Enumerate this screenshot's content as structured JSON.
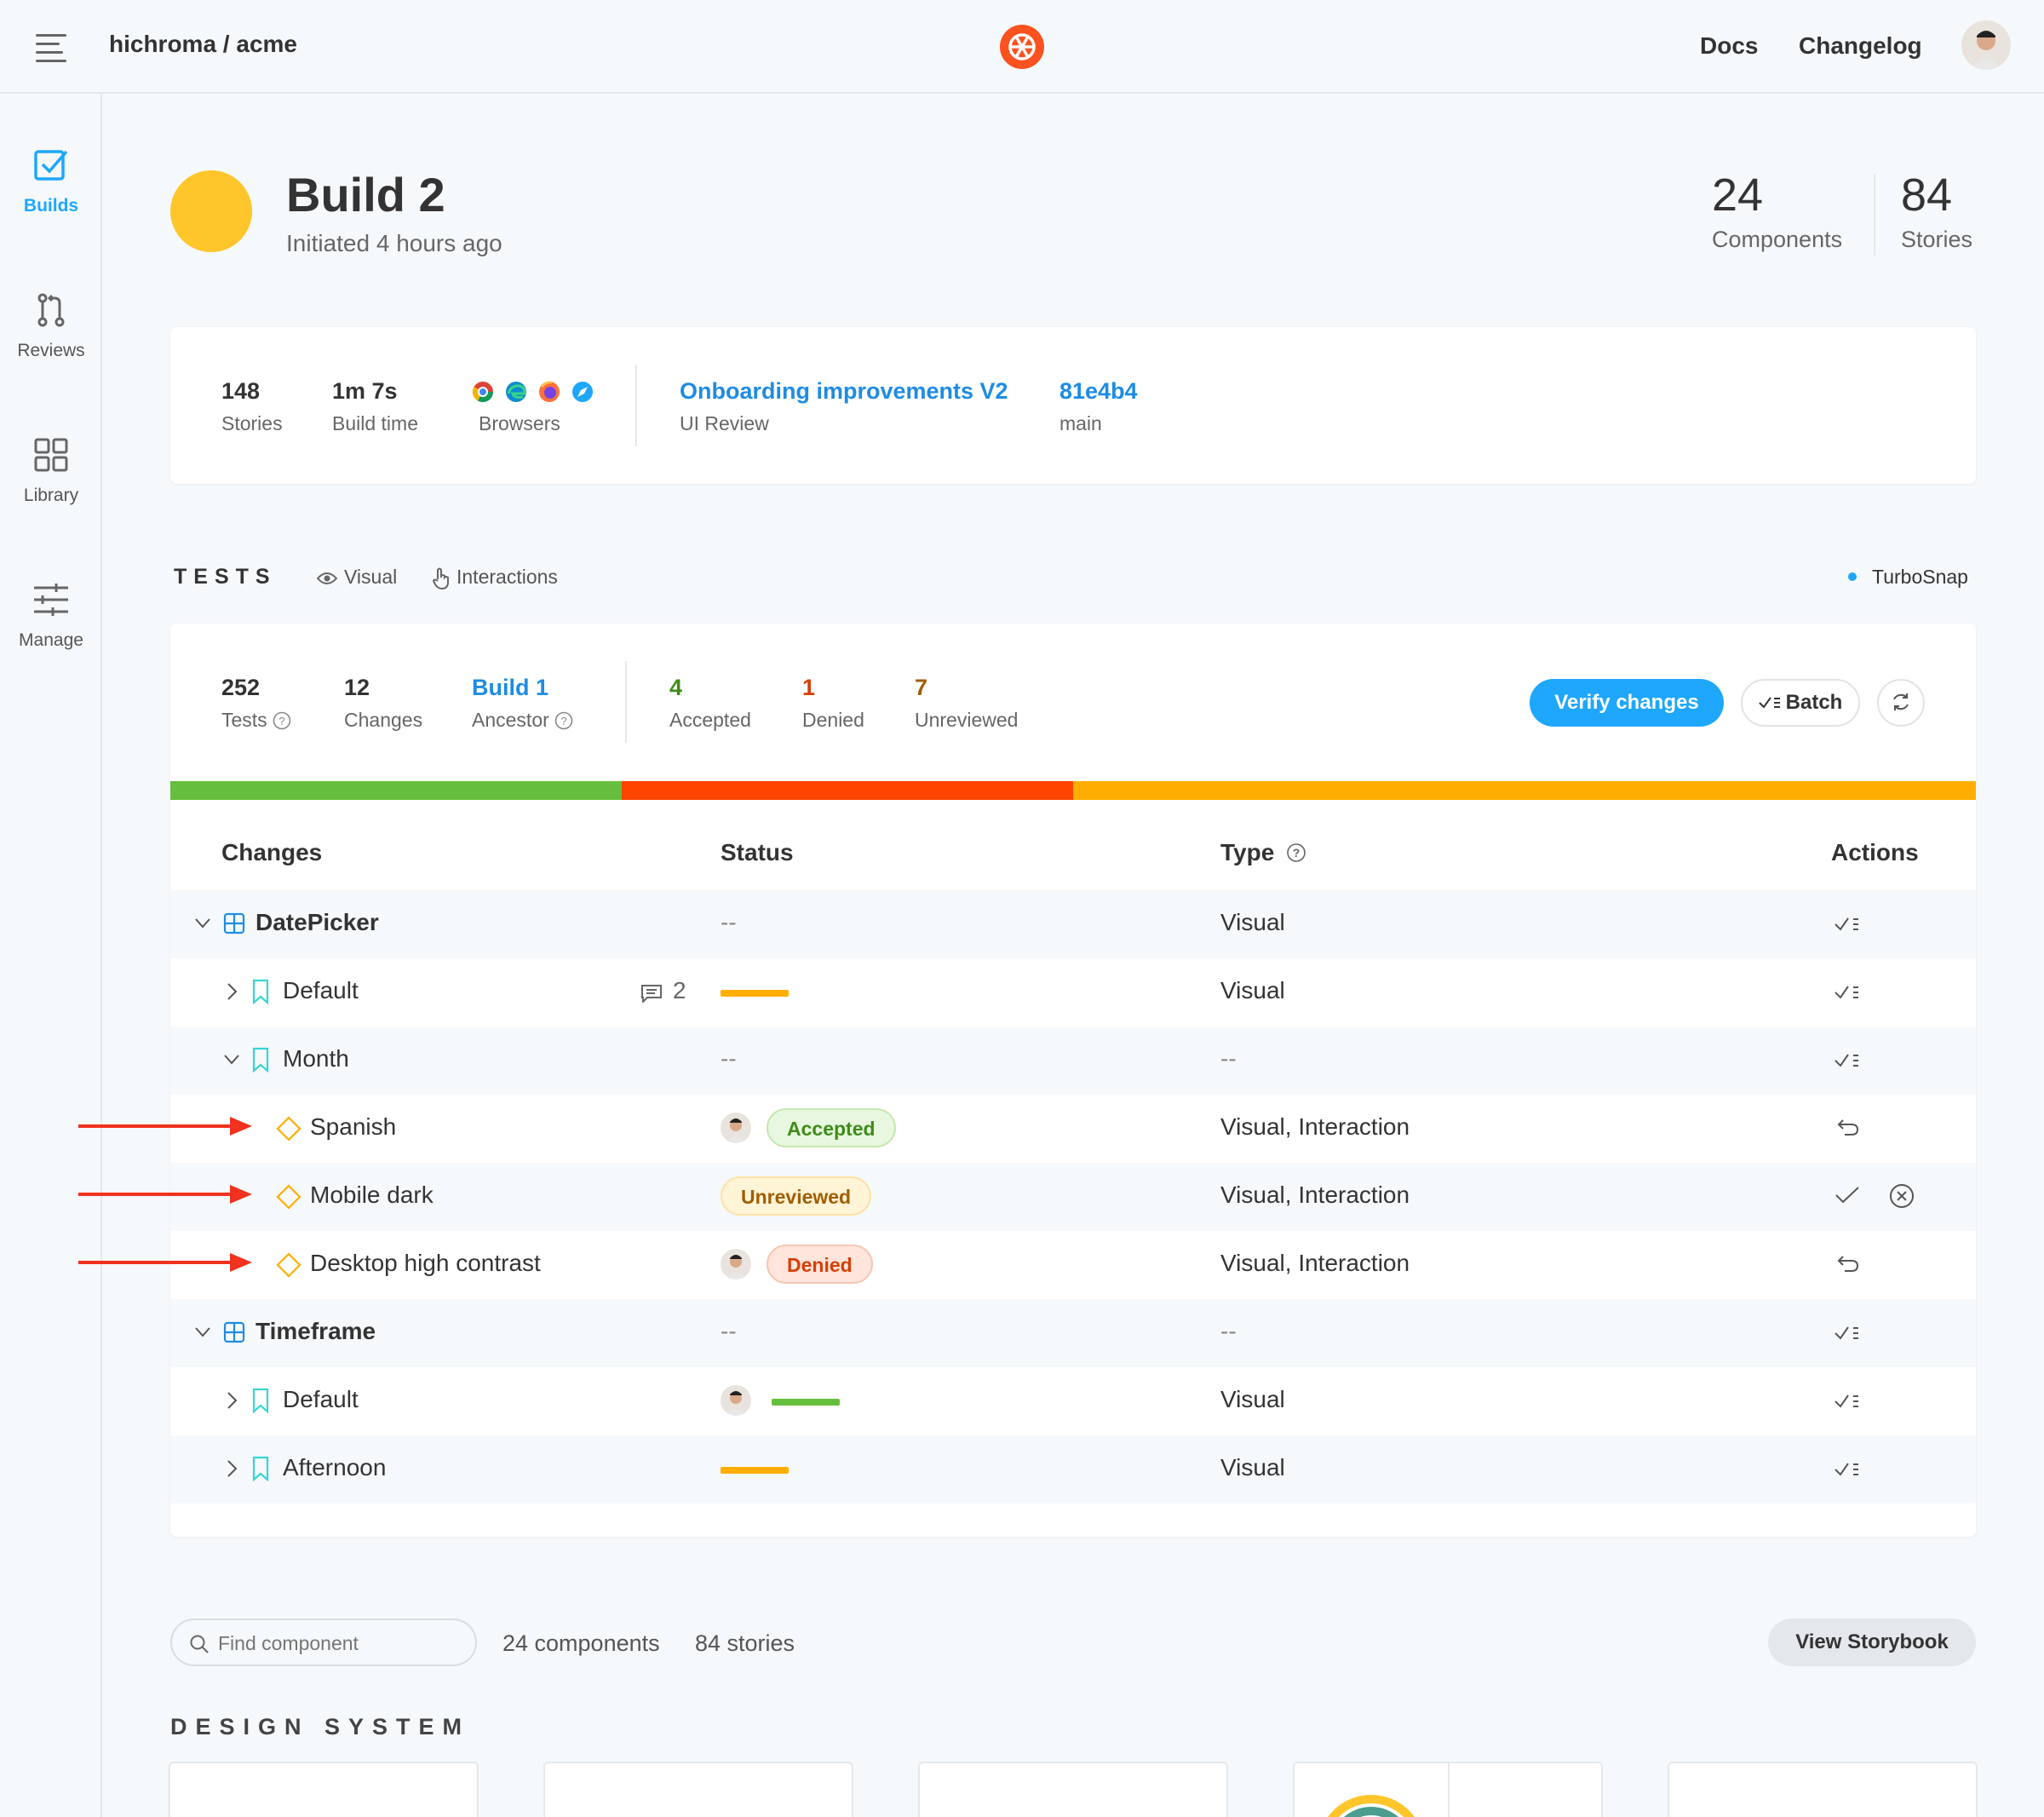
{
  "topbar": {
    "breadcrumb": "hichroma / acme",
    "docs": "Docs",
    "changelog": "Changelog"
  },
  "sidebar": {
    "items": [
      {
        "label": "Builds"
      },
      {
        "label": "Reviews"
      },
      {
        "label": "Library"
      },
      {
        "label": "Manage"
      }
    ]
  },
  "header": {
    "title": "Build 2",
    "subtitle": "Initiated 4 hours ago",
    "components_count": "24",
    "components_label": "Components",
    "stories_count": "84",
    "stories_label": "Stories"
  },
  "info": {
    "stories_value": "148",
    "stories_label": "Stories",
    "build_time_value": "1m 7s",
    "build_time_label": "Build time",
    "browsers_label": "Browsers",
    "review_title": "Onboarding improvements V2",
    "review_label": "UI Review",
    "commit": "81e4b4",
    "branch": "main"
  },
  "tests": {
    "title": "TESTS",
    "tab_visual": "Visual",
    "tab_interactions": "Interactions",
    "turbosnap": "TurboSnap",
    "tests_value": "252",
    "tests_label": "Tests",
    "changes_value": "12",
    "changes_label": "Changes",
    "ancestor_value": "Build 1",
    "ancestor_label": "Ancestor",
    "accepted_value": "4",
    "accepted_label": "Accepted",
    "denied_value": "1",
    "denied_label": "Denied",
    "unreviewed_value": "7",
    "unreviewed_label": "Unreviewed",
    "verify_button": "Verify changes",
    "batch_button": "Batch",
    "bar_colors": {
      "accepted": "#66bf3c",
      "denied": "#ff4400",
      "unreviewed": "#ffae00"
    }
  },
  "table": {
    "headers": {
      "changes": "Changes",
      "status": "Status",
      "type": "Type",
      "actions": "Actions"
    },
    "rows": [
      {
        "name": "DatePicker",
        "status": "--",
        "type": "Visual"
      },
      {
        "name": "Default",
        "comments": "2",
        "type": "Visual"
      },
      {
        "name": "Month",
        "status": "--",
        "type": "--"
      },
      {
        "name": "Spanish",
        "status": "Accepted",
        "type": "Visual, Interaction"
      },
      {
        "name": "Mobile dark",
        "status": "Unreviewed",
        "type": "Visual, Interaction"
      },
      {
        "name": "Desktop high contrast",
        "status": "Denied",
        "type": "Visual, Interaction"
      },
      {
        "name": "Timeframe",
        "status": "--",
        "type": "--"
      },
      {
        "name": "Default",
        "type": "Visual"
      },
      {
        "name": "Afternoon",
        "type": "Visual"
      }
    ]
  },
  "bottom": {
    "search_placeholder": "Find component",
    "components_count": "24 components",
    "stories_count": "84 stories",
    "view_storybook": "View Storybook",
    "section_title": "DESIGN SYSTEM"
  }
}
